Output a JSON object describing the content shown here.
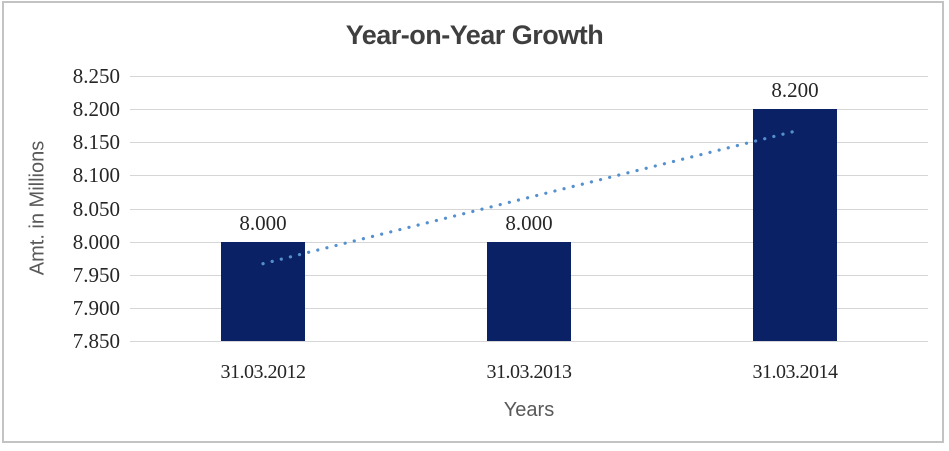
{
  "chart_data": {
    "type": "bar",
    "title": "Year-on-Year Growth",
    "categories": [
      "31.03.2012",
      "31.03.2013",
      "31.03.2014"
    ],
    "values": [
      8.0,
      8.0,
      8.2
    ],
    "value_labels": [
      "8.000",
      "8.000",
      "8.200"
    ],
    "xlabel": "Years",
    "ylabel": "Amt. in Millions",
    "ylim": [
      7.85,
      8.25
    ],
    "ytick_step": 0.05,
    "yticks": [
      "8.250",
      "8.200",
      "8.150",
      "8.100",
      "8.050",
      "8.000",
      "7.950",
      "7.900",
      "7.850"
    ],
    "grid": "horizontal-only",
    "legend": "none",
    "trendline": {
      "type": "linear",
      "points": [
        7.9667,
        8.0667,
        8.1667
      ],
      "style": "dotted"
    },
    "colors": {
      "bar": "#0a2265",
      "trendline": "#5590ce",
      "gridline": "#d6d6d6",
      "axis_line": "#c9c9c9",
      "title_text": "#3f3f3f",
      "tick_text": "#262626",
      "axis_title_text": "#595959",
      "frame_border": "#c3c3c3",
      "background": "#ffffff"
    }
  }
}
